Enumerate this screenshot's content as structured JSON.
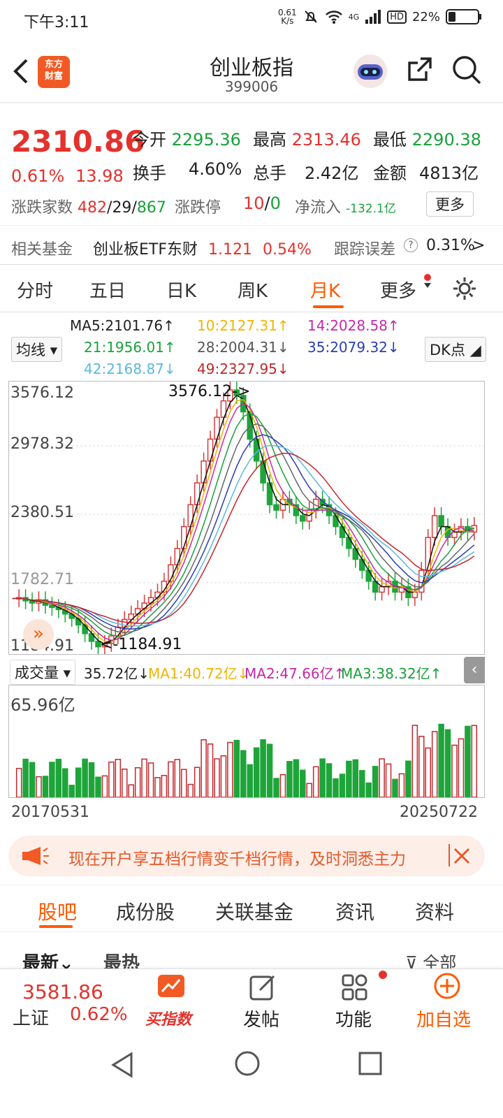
{
  "status_bar": {
    "time": "下午3:11",
    "net_speed_value": "0.61",
    "net_speed_unit": "K/s",
    "network": "4G",
    "hd": "HD",
    "battery": "22%"
  },
  "header": {
    "title": "创业板指",
    "code": "399006",
    "logo_line1": "东方",
    "logo_line2": "财富"
  },
  "quote": {
    "price": "2310.86",
    "change_pct": "0.61%",
    "change": "13.98",
    "open_label": "今开",
    "open": "2295.36",
    "high_label": "最高",
    "high": "2313.46",
    "low_label": "最低",
    "low": "2290.38",
    "turnover_label": "换手",
    "turnover": "4.60%",
    "volume_label": "总手",
    "volume": "2.42亿",
    "amount_label": "金额",
    "amount": "4813亿",
    "breadth_label": "涨跌家数",
    "breadth_up": "482",
    "breadth_sep1": "/",
    "breadth_flat": "29",
    "breadth_sep2": "/",
    "breadth_down": "867",
    "limit_label": "涨跌停",
    "limit_up": "10",
    "limit_sep": "/",
    "limit_down": "0",
    "netflow_label": "净流入",
    "netflow": "-132.1亿",
    "more_button": "更多"
  },
  "fund": {
    "label": "相关基金",
    "name": "创业板ETF东财",
    "price": "1.121",
    "pct": "0.54%",
    "tracking_label": "跟踪误差",
    "tracking_value": "0.31%",
    "arrow": ">"
  },
  "chart_tabs": [
    {
      "label": "分时"
    },
    {
      "label": "五日"
    },
    {
      "label": "日K"
    },
    {
      "label": "周K"
    },
    {
      "label": "月K",
      "active": true
    },
    {
      "label": "更多"
    }
  ],
  "ma": {
    "selector": "均线",
    "dk_button": "DK点",
    "ma5": "MA5:2101.76↑",
    "ma10": "10:2127.31↑",
    "ma14": "14:2028.58↑",
    "ma21": "21:1956.01↑",
    "ma28": "28:2004.31↓",
    "ma35": "35:2079.32↓",
    "ma42": "42:2168.87↓",
    "ma49": "49:2327.95↓"
  },
  "price_axis": {
    "top": "3576.12",
    "mid1": "2978.32",
    "mid2": "2380.51",
    "mid3": "1782.71",
    "bottom": "1184.91",
    "high_marker": "3576.12->",
    "low_marker": "<-1184.91"
  },
  "volume": {
    "selector": "成交量",
    "current": "35.72亿↓",
    "ma1": "MA1:40.72亿↓",
    "ma2": "MA2:47.66亿↑",
    "ma3": "MA3:38.32亿↑",
    "axis_top": "65.96亿"
  },
  "date_axis": {
    "start": "20170531",
    "end": "20250722"
  },
  "banner": {
    "text": "现在开户享五档行情变千档行情，及时洞悉主力"
  },
  "section_tabs": [
    {
      "label": "股吧",
      "active": true
    },
    {
      "label": "成份股"
    },
    {
      "label": "关联基金"
    },
    {
      "label": "资讯"
    },
    {
      "label": "资料"
    }
  ],
  "feed_tabs": {
    "latest": "最新",
    "hot": "最热",
    "filter": "全部"
  },
  "bottom_bar": {
    "sh_price": "3581.86",
    "sh_label": "上证",
    "sh_pct": "0.62%",
    "buy_index": "买指数",
    "post": "发帖",
    "func": "功能",
    "add": "加自选"
  },
  "colors": {
    "up": "#e3322d",
    "down": "#18a23a",
    "accent": "#ff5a00"
  }
}
